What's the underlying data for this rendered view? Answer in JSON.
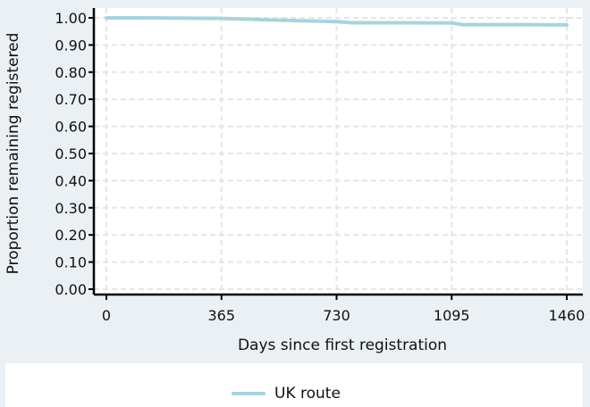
{
  "chart_data": {
    "type": "line",
    "title": "",
    "xlabel": "Days since first registration",
    "ylabel": "Proportion remaining registered",
    "xlim": [
      0,
      1460
    ],
    "ylim": [
      0,
      1
    ],
    "x_ticks": [
      "0",
      "365",
      "730",
      "1095",
      "1460"
    ],
    "y_ticks": [
      "0.00",
      "0.10",
      "0.20",
      "0.30",
      "0.40",
      "0.50",
      "0.60",
      "0.70",
      "0.80",
      "0.90",
      "1.00"
    ],
    "grid": true,
    "legend_position": "bottom",
    "series": [
      {
        "name": "UK route",
        "color": "#a9d3dd",
        "x": [
          0,
          120,
          365,
          500,
          730,
          780,
          900,
          1095,
          1130,
          1300,
          1460
        ],
        "y": [
          1.0,
          1.0,
          0.998,
          0.993,
          0.986,
          0.982,
          0.982,
          0.981,
          0.975,
          0.975,
          0.974
        ]
      }
    ]
  }
}
